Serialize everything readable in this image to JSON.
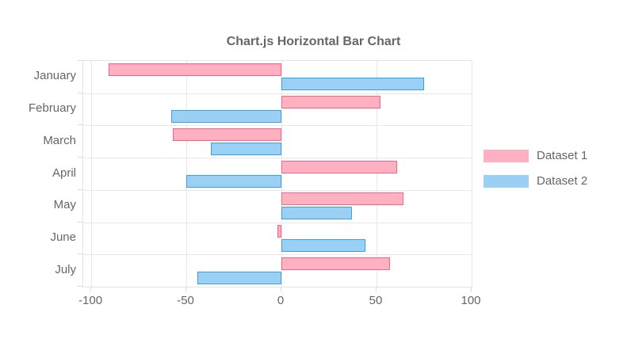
{
  "chart_data": {
    "type": "bar",
    "orientation": "horizontal",
    "title": "Chart.js Horizontal Bar Chart",
    "categories": [
      "January",
      "February",
      "March",
      "April",
      "May",
      "June",
      "July"
    ],
    "series": [
      {
        "name": "Dataset 1",
        "fill": "#FFB1C1",
        "border": "#FF6384",
        "values": [
          -91,
          52,
          -57,
          61,
          64,
          -2,
          57
        ]
      },
      {
        "name": "Dataset 2",
        "fill": "#9BD0F5",
        "border": "#36A2EB",
        "values": [
          75,
          -58,
          -37,
          -50,
          37,
          44,
          -44
        ]
      }
    ],
    "x_ticks": [
      -100,
      -50,
      0,
      50,
      100
    ],
    "xlim": [
      -104.2,
      100
    ],
    "grid": true,
    "legend_position": "right",
    "text_color": "#666666",
    "grid_color": "#e8e8e8"
  }
}
